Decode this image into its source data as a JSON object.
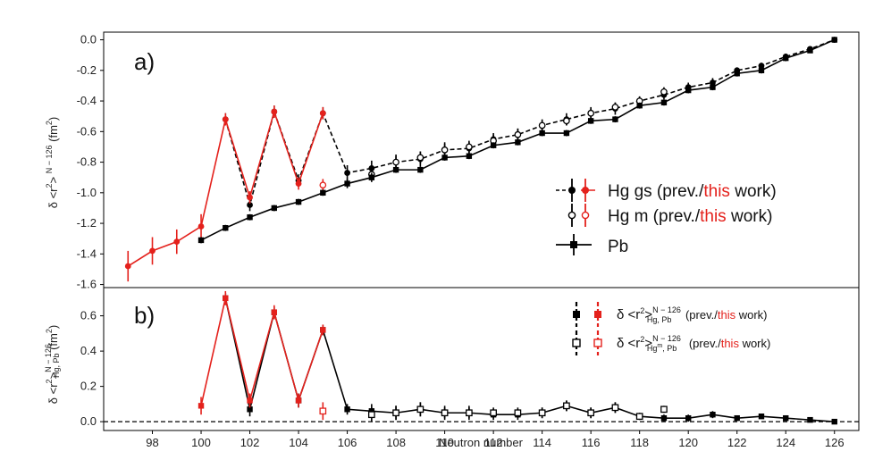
{
  "chart_data": {
    "type": "line",
    "xlabel": "Neutron number",
    "x_ticks": [
      98,
      100,
      102,
      104,
      106,
      108,
      110,
      112,
      114,
      116,
      118,
      120,
      122,
      124,
      126
    ],
    "panels": [
      {
        "label": "a)",
        "ylabel": "δ <r²>^{N−126} (fm²)",
        "ylabel_main": "δ <r",
        "ylabel_sup": "2",
        "ylabel_mid": "> ",
        "ylabel_sup2": "N − 126",
        "ylabel_unit": " (fm",
        "ylabel_unit_sup": "2",
        "ylabel_end": ")",
        "ylim": [
          -1.62,
          0.05
        ],
        "y_ticks": [
          "0.0",
          "-0.2",
          "-0.4",
          "-0.6",
          "-0.8",
          "-1.0",
          "-1.2",
          "-1.4",
          "-1.6"
        ],
        "legend": {
          "position": "right",
          "entries": [
            {
              "prefix": "Hg gs  (prev./",
              "highlight": "this",
              "suffix": " work)"
            },
            {
              "prefix": "Hg m  (prev./",
              "highlight": "this",
              "suffix": " work)"
            },
            {
              "prefix": "Pb",
              "highlight": "",
              "suffix": ""
            }
          ]
        },
        "series": [
          {
            "name": "Hg gs prev.",
            "color": "#000000",
            "style": "dashed",
            "marker": "filled-circle",
            "x": [
              101,
              102,
              103,
              104,
              105,
              106,
              107,
              108,
              109,
              110,
              111,
              112,
              113,
              114,
              115,
              116,
              117,
              118,
              119,
              120,
              121,
              122,
              123,
              124,
              125,
              126
            ],
            "y": [
              -0.52,
              -1.08,
              -0.47,
              -0.92,
              -0.48,
              -0.87,
              -0.84,
              -0.8,
              -0.78,
              -0.72,
              -0.71,
              -0.65,
              -0.62,
              -0.56,
              -0.52,
              -0.48,
              -0.45,
              -0.4,
              -0.36,
              -0.31,
              -0.28,
              -0.2,
              -0.17,
              -0.11,
              -0.06,
              0.0
            ],
            "err": [
              0.04,
              0.04,
              0.04,
              0.04,
              0.04,
              0.05,
              0.05,
              0.05,
              0.05,
              0.05,
              0.04,
              0.04,
              0.04,
              0.04,
              0.04,
              0.04,
              0.04,
              0.03,
              0.03,
              0.03,
              0.03,
              0.02,
              0.02,
              0.02,
              0.01,
              0.0
            ]
          },
          {
            "name": "Hg gs this",
            "color": "#e4211c",
            "style": "solid",
            "marker": "filled-circle",
            "x": [
              97,
              98,
              99,
              100,
              101,
              102,
              103,
              104,
              105
            ],
            "y": [
              -1.48,
              -1.38,
              -1.32,
              -1.22,
              -0.52,
              -1.03,
              -0.47,
              -0.94,
              -0.48
            ],
            "err": [
              0.1,
              0.09,
              0.08,
              0.08,
              0.04,
              0.04,
              0.04,
              0.04,
              0.04
            ]
          },
          {
            "name": "Hg m prev.",
            "color": "#000000",
            "style": "none",
            "marker": "open-circle",
            "x": [
              107,
              108,
              109,
              110,
              111,
              112,
              113,
              114,
              115,
              116,
              117,
              118,
              119
            ],
            "y": [
              -0.88,
              -0.8,
              -0.77,
              -0.72,
              -0.7,
              -0.66,
              -0.62,
              -0.56,
              -0.53,
              -0.48,
              -0.44,
              -0.4,
              -0.34
            ],
            "err": [
              0.04,
              0.04,
              0.04,
              0.04,
              0.04,
              0.04,
              0.04,
              0.03,
              0.03,
              0.03,
              0.03,
              0.03,
              0.03
            ]
          },
          {
            "name": "Hg m this",
            "color": "#e4211c",
            "style": "none",
            "marker": "open-circle",
            "x": [
              105
            ],
            "y": [
              -0.95
            ],
            "err": [
              0.04
            ]
          },
          {
            "name": "Pb",
            "color": "#000000",
            "style": "solid",
            "marker": "filled-square",
            "x": [
              100,
              101,
              102,
              103,
              104,
              105,
              106,
              107,
              108,
              109,
              110,
              111,
              112,
              113,
              114,
              115,
              116,
              117,
              118,
              119,
              120,
              121,
              122,
              123,
              124,
              125,
              126
            ],
            "y": [
              -1.31,
              -1.23,
              -1.16,
              -1.1,
              -1.06,
              -1.0,
              -0.94,
              -0.9,
              -0.85,
              -0.85,
              -0.77,
              -0.76,
              -0.69,
              -0.67,
              -0.61,
              -0.61,
              -0.53,
              -0.52,
              -0.43,
              -0.41,
              -0.33,
              -0.31,
              -0.22,
              -0.2,
              -0.12,
              -0.07,
              0.0
            ],
            "err": [
              0.02,
              0.02,
              0.02,
              0.02,
              0.02,
              0.02,
              0.03,
              0.03,
              0.02,
              0.02,
              0.02,
              0.02,
              0.02,
              0.02,
              0.02,
              0.02,
              0.02,
              0.02,
              0.02,
              0.02,
              0.02,
              0.02,
              0.02,
              0.02,
              0.02,
              0.01,
              0.0
            ]
          }
        ]
      },
      {
        "label": "b)",
        "ylabel": "δ <r²>^{N−126}_{Hg, Pb} (fm²)",
        "ylabel_main": "δ <r",
        "ylabel_sup": "2",
        "ylabel_mid": ">",
        "ylabel_sup2": "N − 126",
        "ylabel_sub": "Hg, Pb",
        "ylabel_unit": " (fm",
        "ylabel_unit_sup": "2",
        "ylabel_end": ")",
        "ylim": [
          -0.05,
          0.76
        ],
        "y_ticks": [
          "0.0",
          "0.2",
          "0.4",
          "0.6"
        ],
        "reference_line": 0.0,
        "legend": {
          "position": "top-right",
          "entries": [
            {
              "expr": "δ <r",
              "sup1": "2",
              "gt": ">",
              "sup2": "N − 126",
              "sub": "Hg, Pb",
              "prefix": " (prev./",
              "highlight": "this",
              "suffix": " work)"
            },
            {
              "expr": "δ <r",
              "sup1": "2",
              "gt": ">",
              "sup2": "N − 126",
              "sub": "Hg",
              "subsup": "m",
              "sub2": ", Pb",
              "prefix": " (prev./",
              "highlight": "this",
              "suffix": " work)"
            }
          ]
        },
        "series": [
          {
            "name": "Hg-Pb prev.",
            "color": "#000000",
            "style": "solid",
            "marker": "filled-square",
            "x": [
              101,
              102,
              103,
              104,
              105,
              106,
              107,
              108,
              109,
              110,
              111,
              112,
              113,
              114,
              115,
              116,
              117,
              118,
              119,
              120,
              121,
              122,
              123,
              124,
              125,
              126
            ],
            "y": [
              0.7,
              0.07,
              0.62,
              0.12,
              0.52,
              0.07,
              0.06,
              0.05,
              0.07,
              0.05,
              0.05,
              0.04,
              0.04,
              0.05,
              0.09,
              0.05,
              0.08,
              0.03,
              0.02,
              0.02,
              0.04,
              0.02,
              0.03,
              0.02,
              0.01,
              0.0
            ],
            "err": [
              0.03,
              0.04,
              0.03,
              0.04,
              0.03,
              0.03,
              0.04,
              0.04,
              0.04,
              0.04,
              0.04,
              0.03,
              0.03,
              0.03,
              0.03,
              0.03,
              0.03,
              0.02,
              0.02,
              0.02,
              0.02,
              0.01,
              0.01,
              0.01,
              0.01,
              0.0
            ]
          },
          {
            "name": "Hg-Pb this",
            "color": "#e4211c",
            "style": "solid",
            "marker": "filled-square",
            "x": [
              100,
              101,
              102,
              103,
              104,
              105
            ],
            "y": [
              0.09,
              0.7,
              0.12,
              0.62,
              0.12,
              0.52
            ],
            "err": [
              0.05,
              0.04,
              0.04,
              0.04,
              0.04,
              0.03
            ]
          },
          {
            "name": "Hgm-Pb prev.",
            "color": "#000000",
            "style": "none",
            "marker": "open-square",
            "x": [
              107,
              108,
              109,
              110,
              111,
              112,
              113,
              114,
              115,
              116,
              117,
              118,
              119
            ],
            "y": [
              0.04,
              0.05,
              0.07,
              0.05,
              0.05,
              0.05,
              0.05,
              0.05,
              0.09,
              0.05,
              0.08,
              0.03,
              0.07
            ],
            "err": [
              0.04,
              0.04,
              0.04,
              0.03,
              0.03,
              0.03,
              0.03,
              0.03,
              0.03,
              0.03,
              0.03,
              0.02,
              0.02
            ]
          },
          {
            "name": "Hgm-Pb this",
            "color": "#e4211c",
            "style": "none",
            "marker": "open-square",
            "x": [
              105
            ],
            "y": [
              0.06
            ],
            "err": [
              0.05
            ]
          }
        ]
      }
    ]
  }
}
